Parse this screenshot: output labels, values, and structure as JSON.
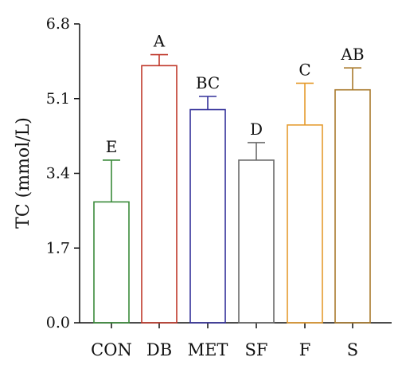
{
  "chart_data": {
    "type": "bar",
    "ylabel": "TC (mmol/L)",
    "xlabel": "",
    "ylim": [
      0,
      6.8
    ],
    "yticks": [
      "0.0",
      "1.7",
      "3.4",
      "5.1",
      "6.8"
    ],
    "grid": false,
    "categories": [
      "CON",
      "DB",
      "MET",
      "SF",
      "F",
      "S"
    ],
    "values": [
      2.75,
      5.85,
      4.85,
      3.7,
      4.5,
      5.3
    ],
    "errors": [
      0.95,
      0.25,
      0.3,
      0.4,
      0.95,
      0.5
    ],
    "significance_labels": [
      "E",
      "A",
      "BC",
      "D",
      "C",
      "AB"
    ],
    "colors": [
      "#3a8a3a",
      "#c0392b",
      "#34319a",
      "#6b6b6b",
      "#e59b2e",
      "#a97a2c"
    ]
  }
}
